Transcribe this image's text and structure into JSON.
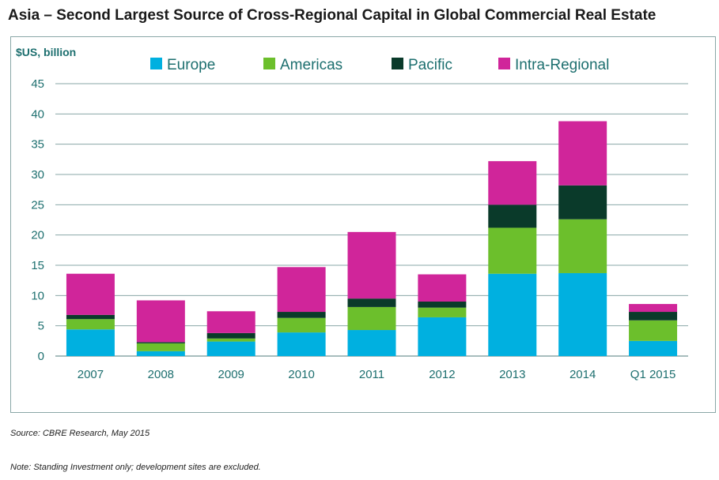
{
  "title": "Asia – Second Largest Source of Cross-Regional Capital in Global Commercial Real Estate",
  "source": "Source: CBRE Research, May 2015",
  "note": "Note: Standing Investment only; development sites are excluded.",
  "colors": {
    "Europe": "#00b0e0",
    "Americas": "#6cbf2c",
    "Pacific": "#0a3a2a",
    "Intra-Regional": "#d0259a",
    "axis_text": "#1d6f6f",
    "grid": "#8aa7a7"
  },
  "chart_data": {
    "type": "bar",
    "stacked": true,
    "ylabel": "$US, billion",
    "ylim": [
      0,
      45
    ],
    "yticks": [
      0,
      5,
      10,
      15,
      20,
      25,
      30,
      35,
      40,
      45
    ],
    "grid": true,
    "legend_position": "top",
    "categories": [
      "2007",
      "2008",
      "2009",
      "2010",
      "2011",
      "2012",
      "2013",
      "2014",
      "Q1 2015"
    ],
    "series": [
      {
        "name": "Europe",
        "values": [
          4.4,
          0.8,
          2.4,
          3.9,
          4.3,
          6.4,
          13.6,
          13.7,
          2.5
        ]
      },
      {
        "name": "Americas",
        "values": [
          1.7,
          1.3,
          0.5,
          2.4,
          3.8,
          1.6,
          7.6,
          8.9,
          3.4
        ]
      },
      {
        "name": "Pacific",
        "values": [
          0.7,
          0.2,
          0.9,
          1.0,
          1.4,
          1.0,
          3.8,
          5.6,
          1.4
        ]
      },
      {
        "name": "Intra-Regional",
        "values": [
          6.8,
          6.9,
          3.6,
          7.4,
          11.0,
          4.5,
          7.2,
          10.6,
          1.3
        ]
      }
    ]
  }
}
